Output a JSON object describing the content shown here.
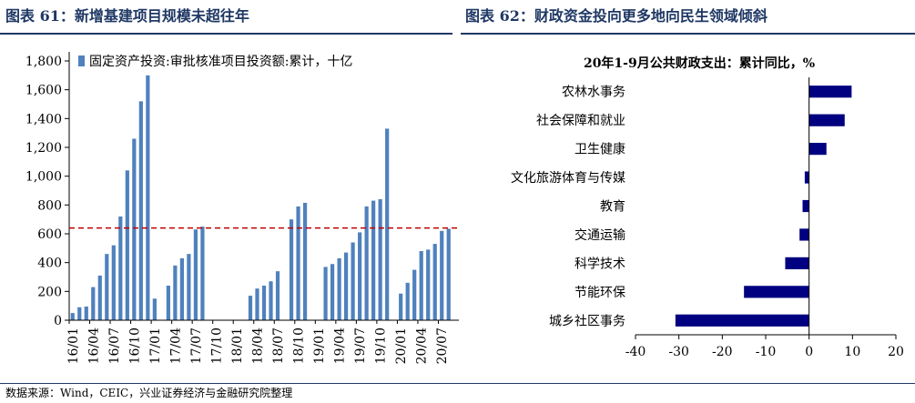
{
  "figure_left": {
    "title": "图表 61：新增基建项目规模未超往年"
  },
  "figure_right": {
    "title": "图表 62：财政资金投向更多地向民生领域倾斜"
  },
  "source": "数据来源：Wind，CEIC，兴业证券经济与金融研究院整理",
  "colors": {
    "bar_left": "#4f81bd",
    "bar_right": "#000080",
    "reference_line": "#c00000",
    "title": "#1f3864"
  },
  "chart_data": [
    {
      "type": "bar",
      "title": "",
      "legend": "固定资产投资:审批核准项目投资额:累计，十亿",
      "legend_position": "top",
      "ylim": [
        0,
        1800
      ],
      "yticks": [
        0,
        200,
        400,
        600,
        800,
        1000,
        1200,
        1400,
        1600,
        1800
      ],
      "ytick_labels": [
        "0",
        "200",
        "400",
        "600",
        "800",
        "1,000",
        "1,200",
        "1,400",
        "1,600",
        "1,800"
      ],
      "reference_line": 640,
      "xtick_labels": [
        "16/01",
        "16/04",
        "16/07",
        "16/10",
        "17/01",
        "17/04",
        "17/07",
        "17/10",
        "18/01",
        "18/04",
        "18/07",
        "18/10",
        "19/01",
        "19/04",
        "19/07",
        "19/10",
        "20/01",
        "20/04",
        "20/07"
      ],
      "categories": [
        "16/01",
        "16/02",
        "16/03",
        "16/04",
        "16/05",
        "16/06",
        "16/07",
        "16/08",
        "16/09",
        "16/10",
        "16/11",
        "16/12",
        "17/01",
        "17/02",
        "17/03",
        "17/04",
        "17/05",
        "17/06",
        "17/07",
        "17/08",
        "17/09",
        "17/10",
        "17/11",
        "17/12",
        "18/01",
        "18/02",
        "18/03",
        "18/04",
        "18/05",
        "18/06",
        "18/07",
        "18/08",
        "18/09",
        "18/10",
        "18/11",
        "18/12",
        "19/01",
        "19/02",
        "19/03",
        "19/04",
        "19/05",
        "19/06",
        "19/07",
        "19/08",
        "19/09",
        "19/10",
        "19/11",
        "19/12",
        "20/01",
        "20/02",
        "20/03",
        "20/04",
        "20/05",
        "20/06",
        "20/07",
        "20/08",
        "20/09"
      ],
      "values": [
        50,
        90,
        95,
        230,
        310,
        460,
        520,
        720,
        1040,
        1260,
        1520,
        1700,
        150,
        null,
        240,
        380,
        430,
        460,
        630,
        650,
        null,
        null,
        null,
        null,
        null,
        null,
        170,
        220,
        240,
        270,
        340,
        null,
        700,
        790,
        815,
        null,
        null,
        370,
        390,
        430,
        470,
        540,
        610,
        790,
        830,
        840,
        1330,
        null,
        185,
        260,
        350,
        480,
        490,
        530,
        620,
        635,
        null
      ]
    },
    {
      "type": "bar",
      "orientation": "horizontal",
      "title": "20年1-9月公共财政支出：累计同比，%",
      "categories": [
        "农林水事务",
        "社会保障和就业",
        "卫生健康",
        "文化旅游体育与传媒",
        "教育",
        "交通运输",
        "科学技术",
        "节能环保",
        "城乡社区事务"
      ],
      "values": [
        9.8,
        8.2,
        4.0,
        -1.0,
        -1.5,
        -2.2,
        -5.5,
        -15.0,
        -30.8
      ],
      "xlim": [
        -40,
        20
      ],
      "xticks": [
        -40,
        -30,
        -20,
        -10,
        0,
        10,
        20
      ],
      "xtick_labels": [
        "-40",
        "-30",
        "-20",
        "-10",
        "0",
        "10",
        "20"
      ]
    }
  ]
}
